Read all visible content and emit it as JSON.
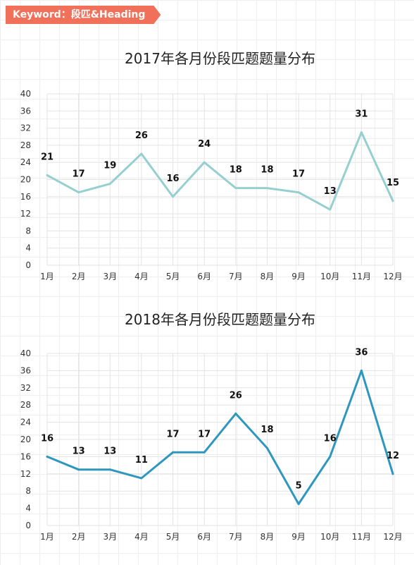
{
  "tag": {
    "label": "Keyword：段匹&Heading"
  },
  "colors": {
    "tag_bg": "#f0705a",
    "series_2017": "#96cfd0",
    "series_2018": "#2e97be"
  },
  "chart_data": [
    {
      "type": "line",
      "title": "2017年各月份段匹题题量分布",
      "categories": [
        "1月",
        "2月",
        "3月",
        "4月",
        "5月",
        "6月",
        "7月",
        "8月",
        "9月",
        "10月",
        "11月",
        "12月"
      ],
      "values": [
        21,
        17,
        19,
        26,
        16,
        24,
        18,
        18,
        17,
        13,
        31,
        15
      ],
      "ylim": [
        0,
        40
      ],
      "yticks": [
        0,
        4,
        8,
        12,
        16,
        20,
        24,
        28,
        32,
        36,
        40
      ],
      "grid": true,
      "color": "#96cfd0"
    },
    {
      "type": "line",
      "title": "2018年各月份段匹题题量分布",
      "categories": [
        "1月",
        "2月",
        "3月",
        "4月",
        "5月",
        "6月",
        "7月",
        "8月",
        "9月",
        "10月",
        "11月",
        "12月"
      ],
      "values": [
        16,
        13,
        13,
        11,
        17,
        17,
        26,
        18,
        5,
        16,
        36,
        12
      ],
      "ylim": [
        0,
        40
      ],
      "yticks": [
        0,
        4,
        8,
        12,
        16,
        20,
        24,
        28,
        32,
        36,
        40
      ],
      "grid": true,
      "color": "#2e97be"
    }
  ]
}
